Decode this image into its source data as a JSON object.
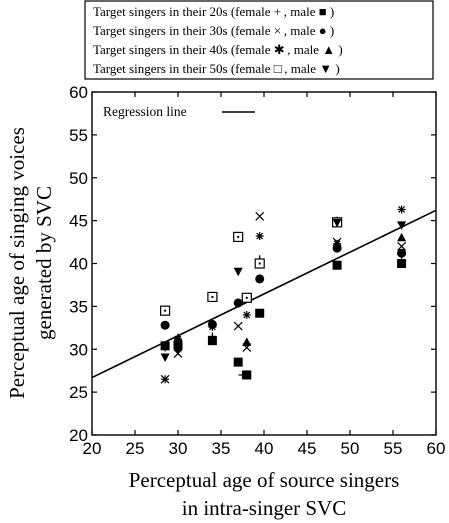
{
  "chart_data": {
    "type": "scatter",
    "xlabel_lines": [
      "Perceptual age of source singers",
      "in intra-singer SVC"
    ],
    "ylabel_lines": [
      "Perceptual age of singing voices",
      "generated by SVC"
    ],
    "xlim": [
      20,
      60
    ],
    "ylim": [
      20,
      60
    ],
    "xticks": [
      20,
      25,
      30,
      35,
      40,
      45,
      50,
      55,
      60
    ],
    "yticks": [
      20,
      25,
      30,
      35,
      40,
      45,
      50,
      55,
      60
    ],
    "grid": false,
    "regression_label": "Regression line",
    "regression_line": {
      "x": [
        20,
        60
      ],
      "y": [
        26.7,
        46.2
      ]
    },
    "legend": {
      "position": "above-plot",
      "entries": [
        "Target singers in their 20s (female + , male ■ )",
        "Target singers in their 30s (female × , male ● )",
        "Target singers in their 40s (female ✱ , male ▲ )",
        "Target singers in their 50s (female □ , male ▼ )"
      ]
    },
    "series": [
      {
        "group": "20s",
        "sex": "female",
        "marker": "plus",
        "points": [
          [
            28.5,
            30.2
          ],
          [
            30,
            31
          ],
          [
            34,
            31.5
          ],
          [
            37.5,
            27
          ],
          [
            39.5,
            40.5
          ],
          [
            48.5,
            45
          ],
          [
            56,
            41
          ]
        ]
      },
      {
        "group": "20s",
        "sex": "male",
        "marker": "square",
        "points": [
          [
            28.5,
            30.4
          ],
          [
            30,
            30.5
          ],
          [
            34,
            31
          ],
          [
            37,
            28.5
          ],
          [
            38,
            27
          ],
          [
            39.5,
            34.2
          ],
          [
            48.5,
            39.8
          ],
          [
            56,
            40
          ]
        ]
      },
      {
        "group": "30s",
        "sex": "female",
        "marker": "x",
        "points": [
          [
            28.5,
            26.5
          ],
          [
            30,
            29.5
          ],
          [
            37,
            32.7
          ],
          [
            38,
            30.2
          ],
          [
            39.5,
            45.5
          ],
          [
            48.5,
            42.5
          ],
          [
            56,
            42
          ]
        ]
      },
      {
        "group": "30s",
        "sex": "male",
        "marker": "circle",
        "points": [
          [
            28.5,
            32.8
          ],
          [
            30,
            30.2
          ],
          [
            34,
            32.9
          ],
          [
            37,
            35.4
          ],
          [
            39.5,
            38.2
          ],
          [
            48.5,
            41.8
          ],
          [
            56,
            41.2
          ]
        ]
      },
      {
        "group": "40s",
        "sex": "female",
        "marker": "asterisk",
        "points": [
          [
            28.5,
            26.5
          ],
          [
            30,
            31.2
          ],
          [
            34,
            32.6
          ],
          [
            38,
            34
          ],
          [
            39.5,
            43.2
          ],
          [
            48.5,
            42.3
          ],
          [
            56,
            46.3
          ]
        ]
      },
      {
        "group": "40s",
        "sex": "male",
        "marker": "triangle-up",
        "points": [
          [
            30,
            31.3
          ],
          [
            34,
            31.1
          ],
          [
            38,
            30.8
          ],
          [
            39.5,
            40.2
          ],
          [
            56,
            43
          ]
        ]
      },
      {
        "group": "50s",
        "sex": "female",
        "marker": "square-open",
        "points": [
          [
            28.5,
            34.5
          ],
          [
            34,
            36.1
          ],
          [
            37,
            43.1
          ],
          [
            38,
            36
          ],
          [
            39.5,
            40
          ],
          [
            48.5,
            44.8
          ]
        ]
      },
      {
        "group": "50s",
        "sex": "male",
        "marker": "triangle-down",
        "points": [
          [
            28.5,
            29.1
          ],
          [
            30,
            29.9
          ],
          [
            37,
            39.1
          ],
          [
            48.5,
            44.8
          ],
          [
            56,
            44.5
          ]
        ]
      }
    ]
  }
}
